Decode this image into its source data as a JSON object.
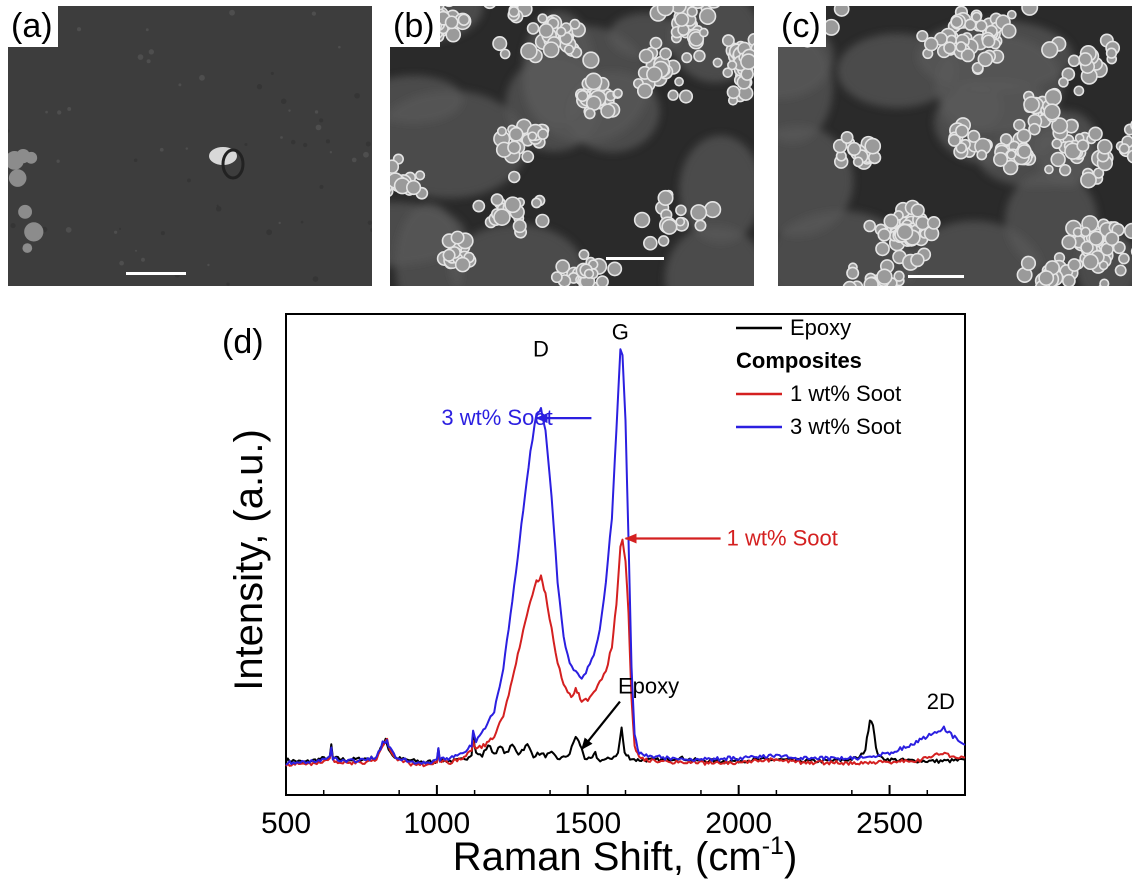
{
  "panels": [
    {
      "label": "(a)",
      "kind": "flat"
    },
    {
      "label": "(b)",
      "kind": "particles"
    },
    {
      "label": "(c)",
      "kind": "particles"
    }
  ],
  "chart_data": {
    "type": "line",
    "panel_label": "(d)",
    "xlabel": "Raman Shift, (cm",
    "xlabel_sup": "-1",
    "xlabel_close": ")",
    "ylabel": "Intensity, (a.u.)",
    "xlim": [
      500,
      2750
    ],
    "ylim": [
      0,
      100
    ],
    "xticks": [
      500,
      1000,
      1500,
      2000,
      2500
    ],
    "legend": {
      "position": "top-right",
      "entries": [
        {
          "label": "Epoxy",
          "color": "#000000",
          "line": true
        },
        {
          "label": "Composites",
          "color": "#000000",
          "line": false,
          "bold": true
        },
        {
          "label": "1 wt% Soot",
          "color": "#d42020",
          "line": true
        },
        {
          "label": "3 wt% Soot",
          "color": "#2b1fe0",
          "line": true
        }
      ]
    },
    "peak_labels": [
      {
        "text": "D",
        "x": 1345,
        "y": 95
      },
      {
        "text": "G",
        "x": 1608,
        "y": 99
      },
      {
        "text": "2D",
        "x": 2670,
        "y": 13
      }
    ],
    "annotations": [
      {
        "text": "3 wt% Soot",
        "color": "#2b1fe0",
        "text_x": 1015,
        "text_y": 83,
        "arrow_to_x": 1330,
        "arrow_to_y": 83
      },
      {
        "text": "1 wt% Soot",
        "color": "#d42020",
        "text_x": 1960,
        "text_y": 55,
        "arrow_to_x": 1625,
        "arrow_to_y": 55
      },
      {
        "text": "Epoxy",
        "color": "#000000",
        "text_x": 1600,
        "text_y": 18,
        "arrow_to_x": 1480,
        "arrow_to_y": 6
      }
    ],
    "series": [
      {
        "name": "Epoxy",
        "color": "#000000",
        "points": [
          [
            500,
            3.5
          ],
          [
            560,
            3
          ],
          [
            620,
            3.8
          ],
          [
            645,
            4
          ],
          [
            650,
            7
          ],
          [
            655,
            4
          ],
          [
            700,
            3.5
          ],
          [
            760,
            3.8
          ],
          [
            800,
            4
          ],
          [
            820,
            7
          ],
          [
            830,
            8.5
          ],
          [
            840,
            6
          ],
          [
            860,
            4
          ],
          [
            900,
            3.5
          ],
          [
            960,
            3
          ],
          [
            1000,
            3.2
          ],
          [
            1005,
            6.5
          ],
          [
            1010,
            3.5
          ],
          [
            1050,
            3.2
          ],
          [
            1080,
            3.5
          ],
          [
            1100,
            4
          ],
          [
            1115,
            5
          ],
          [
            1120,
            9
          ],
          [
            1130,
            5
          ],
          [
            1150,
            4.5
          ],
          [
            1170,
            7
          ],
          [
            1190,
            5
          ],
          [
            1210,
            6.5
          ],
          [
            1230,
            5
          ],
          [
            1250,
            7
          ],
          [
            1270,
            5
          ],
          [
            1300,
            7
          ],
          [
            1320,
            4.5
          ],
          [
            1340,
            5
          ],
          [
            1360,
            4.5
          ],
          [
            1380,
            5
          ],
          [
            1400,
            3.8
          ],
          [
            1420,
            4
          ],
          [
            1440,
            5
          ],
          [
            1460,
            9
          ],
          [
            1475,
            7
          ],
          [
            1490,
            4
          ],
          [
            1510,
            3.5
          ],
          [
            1525,
            5
          ],
          [
            1535,
            3.5
          ],
          [
            1560,
            3.5
          ],
          [
            1580,
            4
          ],
          [
            1600,
            5
          ],
          [
            1612,
            11
          ],
          [
            1622,
            5
          ],
          [
            1640,
            4
          ],
          [
            1660,
            3.5
          ],
          [
            1700,
            3.5
          ],
          [
            1750,
            3.5
          ],
          [
            1800,
            4
          ],
          [
            1850,
            3.5
          ],
          [
            1900,
            3.3
          ],
          [
            1950,
            3.2
          ],
          [
            2000,
            3.3
          ],
          [
            2050,
            3.5
          ],
          [
            2100,
            3.6
          ],
          [
            2150,
            3.5
          ],
          [
            2200,
            3.3
          ],
          [
            2250,
            3.2
          ],
          [
            2300,
            3.3
          ],
          [
            2350,
            3.5
          ],
          [
            2400,
            4
          ],
          [
            2420,
            6
          ],
          [
            2435,
            13
          ],
          [
            2445,
            12
          ],
          [
            2455,
            6
          ],
          [
            2470,
            4
          ],
          [
            2500,
            3.6
          ],
          [
            2550,
            3.4
          ],
          [
            2600,
            3.3
          ],
          [
            2650,
            3.2
          ],
          [
            2700,
            3.3
          ],
          [
            2750,
            3.5
          ]
        ]
      },
      {
        "name": "1 wt% Soot",
        "color": "#d42020",
        "points": [
          [
            500,
            2.5
          ],
          [
            560,
            2.5
          ],
          [
            620,
            3
          ],
          [
            645,
            3.5
          ],
          [
            650,
            6
          ],
          [
            655,
            3.5
          ],
          [
            700,
            2.7
          ],
          [
            760,
            3
          ],
          [
            800,
            3.5
          ],
          [
            820,
            7
          ],
          [
            835,
            8
          ],
          [
            845,
            6
          ],
          [
            870,
            3.5
          ],
          [
            920,
            2.5
          ],
          [
            980,
            2.5
          ],
          [
            1000,
            3
          ],
          [
            1005,
            5.5
          ],
          [
            1010,
            3
          ],
          [
            1050,
            3
          ],
          [
            1090,
            4
          ],
          [
            1115,
            6
          ],
          [
            1120,
            8
          ],
          [
            1130,
            6
          ],
          [
            1160,
            7
          ],
          [
            1190,
            9
          ],
          [
            1220,
            14
          ],
          [
            1250,
            22
          ],
          [
            1280,
            32
          ],
          [
            1310,
            40
          ],
          [
            1330,
            45
          ],
          [
            1345,
            46
          ],
          [
            1360,
            42
          ],
          [
            1380,
            34
          ],
          [
            1400,
            26
          ],
          [
            1420,
            21
          ],
          [
            1440,
            19
          ],
          [
            1450,
            18
          ],
          [
            1460,
            20
          ],
          [
            1470,
            19
          ],
          [
            1480,
            17
          ],
          [
            1500,
            17.5
          ],
          [
            1520,
            19
          ],
          [
            1540,
            22
          ],
          [
            1560,
            24
          ],
          [
            1580,
            30
          ],
          [
            1595,
            40
          ],
          [
            1608,
            53
          ],
          [
            1615,
            55
          ],
          [
            1625,
            50
          ],
          [
            1635,
            38
          ],
          [
            1645,
            18
          ],
          [
            1655,
            7
          ],
          [
            1670,
            4
          ],
          [
            1700,
            3.5
          ],
          [
            1750,
            3.2
          ],
          [
            1800,
            3
          ],
          [
            1900,
            2.8
          ],
          [
            2000,
            3
          ],
          [
            2100,
            3.5
          ],
          [
            2200,
            3
          ],
          [
            2300,
            2.8
          ],
          [
            2400,
            2.8
          ],
          [
            2500,
            3
          ],
          [
            2600,
            3.5
          ],
          [
            2650,
            4.5
          ],
          [
            2670,
            5
          ],
          [
            2700,
            4.5
          ],
          [
            2750,
            4
          ]
        ]
      },
      {
        "name": "3 wt% Soot",
        "color": "#2b1fe0",
        "points": [
          [
            500,
            2.8
          ],
          [
            560,
            3
          ],
          [
            620,
            3.5
          ],
          [
            645,
            4
          ],
          [
            650,
            6.5
          ],
          [
            655,
            4
          ],
          [
            700,
            3.2
          ],
          [
            760,
            3.5
          ],
          [
            800,
            4
          ],
          [
            820,
            7.5
          ],
          [
            835,
            8
          ],
          [
            845,
            6
          ],
          [
            870,
            3.8
          ],
          [
            920,
            3
          ],
          [
            980,
            3
          ],
          [
            1000,
            3.5
          ],
          [
            1005,
            6
          ],
          [
            1010,
            3.5
          ],
          [
            1050,
            4
          ],
          [
            1090,
            5
          ],
          [
            1115,
            7
          ],
          [
            1120,
            10
          ],
          [
            1130,
            8
          ],
          [
            1160,
            11
          ],
          [
            1190,
            15
          ],
          [
            1220,
            25
          ],
          [
            1250,
            40
          ],
          [
            1280,
            58
          ],
          [
            1310,
            75
          ],
          [
            1330,
            84
          ],
          [
            1345,
            85
          ],
          [
            1360,
            80
          ],
          [
            1380,
            65
          ],
          [
            1400,
            45
          ],
          [
            1420,
            32
          ],
          [
            1440,
            26
          ],
          [
            1460,
            24
          ],
          [
            1480,
            22
          ],
          [
            1500,
            25
          ],
          [
            1520,
            28
          ],
          [
            1540,
            34
          ],
          [
            1560,
            45
          ],
          [
            1580,
            60
          ],
          [
            1595,
            80
          ],
          [
            1608,
            99
          ],
          [
            1615,
            98
          ],
          [
            1625,
            82
          ],
          [
            1635,
            55
          ],
          [
            1645,
            25
          ],
          [
            1655,
            9
          ],
          [
            1670,
            5
          ],
          [
            1700,
            4.5
          ],
          [
            1750,
            4
          ],
          [
            1800,
            3.8
          ],
          [
            1900,
            3.6
          ],
          [
            2000,
            4
          ],
          [
            2100,
            4.5
          ],
          [
            2200,
            4
          ],
          [
            2300,
            3.8
          ],
          [
            2400,
            4
          ],
          [
            2500,
            5
          ],
          [
            2600,
            8
          ],
          [
            2650,
            10
          ],
          [
            2680,
            11
          ],
          [
            2710,
            9
          ],
          [
            2750,
            7
          ]
        ]
      }
    ]
  }
}
